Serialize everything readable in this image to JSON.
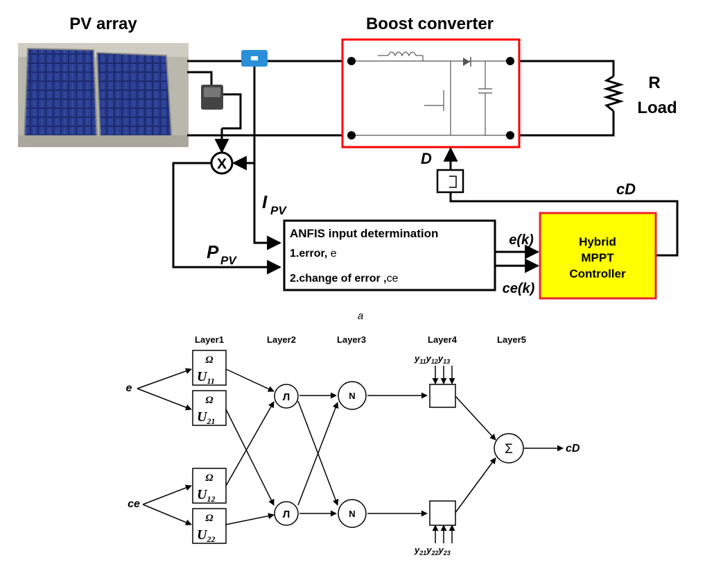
{
  "part_a": {
    "pv_array_title": "PV array",
    "boost_title": "Boost converter",
    "load_r": "R",
    "load_label": "Load",
    "duty_label": "D",
    "cd_label": "cD",
    "ipv_main": "I",
    "ipv_sub": "PV",
    "ppv_main": "P",
    "ppv_sub": "PV",
    "multiplier": "X",
    "anfis_title": "ANFIS input determination",
    "anfis_line1_main": "1.error,",
    "anfis_line1_var": "e",
    "anfis_line2_main": "2.change of error ,",
    "anfis_line2_var": "ce",
    "ek_label": "e(k)",
    "cek_label": "ce(k)",
    "controller_line1": "Hybrid",
    "controller_line2": "MPPT",
    "controller_line3": "Controller",
    "caption": "a",
    "controller_fill": "#ffff00",
    "controller_border": "#e8262c",
    "boost_border": "#ff0000",
    "sensor_color": "#2a8fd8"
  },
  "part_b": {
    "layers": [
      "Layer1",
      "Layer2",
      "Layer3",
      "Layer4",
      "Layer5"
    ],
    "input_e": "e",
    "input_ce": "ce",
    "omega": "Ω",
    "mf_boxes": [
      {
        "main": "U",
        "sub": "11"
      },
      {
        "main": "U",
        "sub": "21"
      },
      {
        "main": "U",
        "sub": "12"
      },
      {
        "main": "U",
        "sub": "22"
      }
    ],
    "pi_symbol": "Л",
    "norm_symbol": "N",
    "y_top": [
      {
        "main": "y",
        "sub": "11"
      },
      {
        "main": "y",
        "sub": "12"
      },
      {
        "main": "y",
        "sub": "13"
      }
    ],
    "y_bottom": [
      {
        "main": "y",
        "sub": "21"
      },
      {
        "main": "y",
        "sub": "22"
      },
      {
        "main": "y",
        "sub": "23"
      }
    ],
    "sum_symbol": "Σ",
    "output": "cD"
  }
}
